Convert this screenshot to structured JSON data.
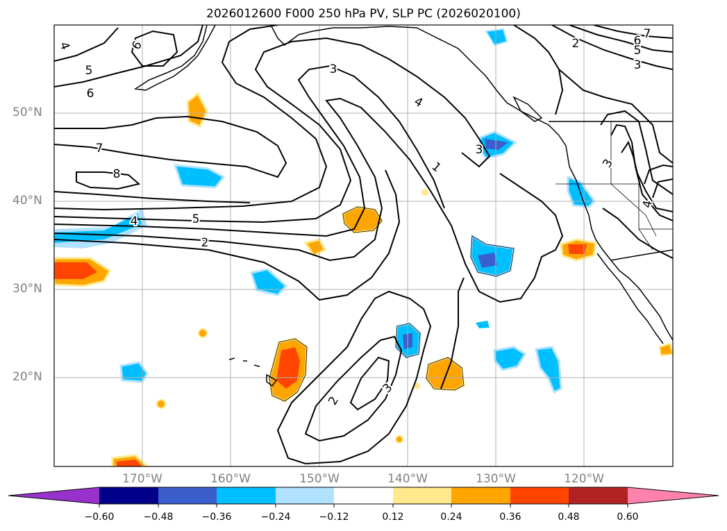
{
  "title": "2026012600 F000 250 hPa PV, SLP PC (2026020100)",
  "lat_labels": [
    "50°N",
    "40°N",
    "30°N",
    "20°N"
  ],
  "lon_labels": [
    "170°W",
    "160°W",
    "150°W",
    "140°W",
    "130°W",
    "120°W"
  ],
  "colorbar": {
    "ticks": [
      "−0.60",
      "−0.48",
      "−0.36",
      "−0.24",
      "−0.12",
      "0.12",
      "0.24",
      "0.36",
      "0.48",
      "0.60"
    ],
    "colors": {
      "under": "#9932cc",
      "bins": [
        "#00008b",
        "#3a5fcd",
        "#00bfff",
        "#b0e2ff",
        "#ffffff",
        "#ffe98c",
        "#ffa500",
        "#ff4500",
        "#b22222"
      ],
      "over": "#ff82ab"
    }
  },
  "contour_labels": [
    "4",
    "6",
    "5",
    "6",
    "7",
    "8",
    "4",
    "5",
    "2",
    "3",
    "4",
    "1",
    "3",
    "2",
    "3",
    "2",
    "7",
    "6",
    "5",
    "3",
    "3",
    "4"
  ],
  "colors": {
    "grid": "#b0b0b0",
    "land_line": "#000000"
  }
}
